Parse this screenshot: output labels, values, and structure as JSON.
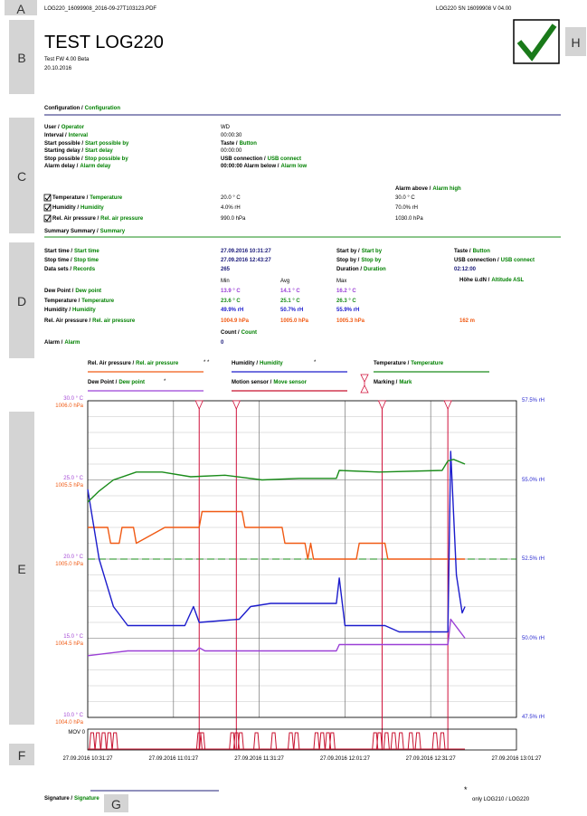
{
  "header": {
    "file": "LOG220_16099908_2016-09-27T103123.PDF",
    "device": "LOG220 SN 16099908 V 04.00"
  },
  "sections": [
    "A",
    "B",
    "C",
    "D",
    "E",
    "F",
    "G",
    "H"
  ],
  "title": "TEST LOG220",
  "firmware": "Test FW 4.00 Beta",
  "date": "20.10.2016",
  "configuration": {
    "heading": [
      "Configuration /",
      "Configuration"
    ],
    "rows": [
      {
        "label": [
          "User /",
          "Operator"
        ],
        "value": "WD"
      },
      {
        "label": [
          "Interval /",
          "Interval"
        ],
        "value": "00:00:30"
      },
      {
        "label": [
          "Start possible /",
          "Start possible by"
        ],
        "value": [
          "Taste /",
          "Button"
        ]
      },
      {
        "label": [
          "Starting delay /",
          "Start delay"
        ],
        "value": "00:00:00"
      },
      {
        "label": [
          "Stop possible /",
          "Stop possible by"
        ],
        "value": [
          "USB connection /",
          "USB connect"
        ]
      },
      {
        "label": [
          "Alarm delay /",
          "Alarm delay"
        ],
        "value": [
          "00:00:00 Alarm below /",
          "Alarm low"
        ]
      }
    ],
    "alarm_above": [
      "Alarm above /",
      "Alarm high"
    ],
    "sensors": [
      {
        "label": [
          "Temperature /",
          "Temperature"
        ],
        "low": "20.0 ° C",
        "high": "30.0 ° C"
      },
      {
        "label": [
          "Humidity /",
          "Humidity"
        ],
        "low": "4.0% rH",
        "high": "70.0% rH"
      },
      {
        "label": [
          "Rel. Air pressure /",
          "Rel. air pressure"
        ],
        "low": "990.0 hPa",
        "high": "1030.0 hPa"
      }
    ]
  },
  "summary": {
    "heading": [
      "Summary Summary /",
      "Summary"
    ],
    "rows": [
      {
        "label": [
          "Start time /",
          "Start time"
        ],
        "value": "27.09.2016 10:31:27",
        "label2": [
          "Start by /",
          "Start by"
        ],
        "value2": [
          "Taste /",
          "Button"
        ]
      },
      {
        "label": [
          "Stop time /",
          "Stop time"
        ],
        "value": "27.09.2016 12:43:27",
        "label2": [
          "Stop by /",
          "Stop by"
        ],
        "value2": [
          "USB connection /",
          "USB connect"
        ]
      },
      {
        "label": [
          "Data sets /",
          "Records"
        ],
        "value": "265",
        "label2": [
          "Duration /",
          "Duration"
        ],
        "value2": "02:12:00"
      }
    ],
    "altitude": {
      "label": [
        "Höhe ü.dN /",
        "Altitude ASL"
      ],
      "value": "162 m"
    },
    "columns": [
      "Min",
      "Avg",
      "Max"
    ],
    "stats": [
      {
        "label": [
          "Dew Point /",
          "Dew point"
        ],
        "values": [
          "13.9 ° C",
          "14.1 ° C",
          "16.2 ° C"
        ],
        "color": "#9b40d6"
      },
      {
        "label": [
          "Temperature /",
          "Temperature"
        ],
        "values": [
          "23.6 ° C",
          "25.1 ° C",
          "26.3 ° C"
        ],
        "color": "#1a8c1a"
      },
      {
        "label": [
          "Humidity /",
          "Humidity"
        ],
        "values": [
          "49.9% rH",
          "50.7% rH",
          "55.9% rH"
        ],
        "color": "#1c1ccc"
      },
      {
        "label": [
          "Rel. Air pressure /",
          "Rel. air pressure"
        ],
        "values": [
          "1004.9 hPa",
          "1005.0 hPa",
          "1005.3 hPa"
        ],
        "color": "#f05a14"
      }
    ],
    "count": [
      "Count /",
      "Count"
    ],
    "alarm": {
      "label": [
        "Alarm /",
        "Alarm"
      ],
      "value": "0"
    }
  },
  "chart_data": {
    "type": "line",
    "xlim": [
      "27.09.2016 10:31:27",
      "27.09.2016 13:01:27"
    ],
    "xticks": [
      "27.09.2016 10:31:27",
      "27.09.2016 11:01:27",
      "27.09.2016 11:31:27",
      "27.09.2016 12:01:27",
      "27.09.2016 12:31:27",
      "27.09.2016 13:01:27"
    ],
    "ylim": [
      10,
      30
    ],
    "yticks": [
      {
        "value": 10,
        "label": "10.0 ° C"
      },
      {
        "value": 15,
        "label": "15.0 ° C"
      },
      {
        "value": 20,
        "label": "20.0 ° C"
      },
      {
        "value": 25,
        "label": "25.0 ° C"
      },
      {
        "value": 30,
        "label": "30.0 ° C"
      }
    ],
    "ycolor": "#a64ad6",
    "y2lim": [
      47.5,
      57.5
    ],
    "y2ticks": [
      {
        "value": 47.5,
        "label": "47.5% rH"
      },
      {
        "value": 50,
        "label": "50.0% rH"
      },
      {
        "value": 52.5,
        "label": "52.5% rH"
      },
      {
        "value": 55,
        "label": "55.0% rH"
      },
      {
        "value": 57.5,
        "label": "57.5% rH"
      }
    ],
    "y2color": "#2a2ad0",
    "y3lim": [
      1004,
      1006
    ],
    "y3ticks": [
      {
        "value": 1004,
        "label": "1004.0 hPa"
      },
      {
        "value": 1004.5,
        "label": "1004.5 hPa"
      },
      {
        "value": 1005,
        "label": "1005.0 hPa"
      },
      {
        "value": 1005.5,
        "label": "1005.5 hPa"
      },
      {
        "value": 1006,
        "label": "1006.0 hPa"
      }
    ],
    "y3color": "#f05a14",
    "grid": true,
    "alarm_low": 20,
    "series": [
      {
        "name": [
          "Rel. Air pressure /",
          "Rel. air pressure"
        ],
        "note": "* *",
        "color": "#f05a14",
        "axis": "y3",
        "x": [
          "10:31:27",
          "10:38:27",
          "10:39:27",
          "10:42:27",
          "10:43:27",
          "10:47:27",
          "10:48:27",
          "10:58:27",
          "11:10:27",
          "11:11:27",
          "11:25:27",
          "11:26:27",
          "11:39:27",
          "11:40:27",
          "11:47:27",
          "11:48:27",
          "11:49:27",
          "11:50:27",
          "12:05:27",
          "12:06:27",
          "12:15:27",
          "12:16:27",
          "12:43:27"
        ],
        "values": [
          1005.2,
          1005.2,
          1005.1,
          1005.1,
          1005.2,
          1005.2,
          1005.1,
          1005.2,
          1005.2,
          1005.3,
          1005.3,
          1005.2,
          1005.2,
          1005.1,
          1005.1,
          1005.0,
          1005.1,
          1005.0,
          1005.0,
          1005.1,
          1005.1,
          1005.0,
          1005.0
        ]
      },
      {
        "name": [
          "Humidity /",
          "Humidity"
        ],
        "note": "*",
        "color": "#1c1ccc",
        "axis": "y2",
        "x": [
          "10:31:27",
          "10:35:27",
          "10:40:27",
          "10:45:27",
          "11:05:27",
          "11:08:27",
          "11:10:27",
          "11:24:27",
          "11:28:27",
          "11:35:27",
          "11:58:27",
          "11:59:27",
          "12:01:27",
          "12:15:27",
          "12:20:27",
          "12:37:27",
          "12:38:27",
          "12:40:27",
          "12:42:27",
          "12:43:27"
        ],
        "values": [
          54.7,
          52.5,
          51.0,
          50.4,
          50.4,
          51.0,
          50.5,
          50.6,
          51.0,
          51.1,
          51.1,
          51.9,
          50.4,
          50.4,
          50.2,
          50.2,
          55.9,
          52.0,
          50.8,
          51.0
        ]
      },
      {
        "name": [
          "Temperature /",
          "Temperature"
        ],
        "color": "#1a8c1a",
        "axis": "y",
        "x": [
          "10:31:27",
          "10:35:27",
          "10:40:27",
          "10:48:27",
          "10:57:27",
          "11:07:27",
          "11:19:27",
          "11:32:27",
          "11:45:27",
          "11:58:27",
          "11:59:27",
          "12:13:27",
          "12:35:27",
          "12:37:27",
          "12:39:27",
          "12:43:27"
        ],
        "values": [
          23.6,
          24.3,
          25.0,
          25.5,
          25.5,
          25.2,
          25.3,
          25.0,
          25.1,
          25.1,
          25.6,
          25.5,
          25.6,
          26.2,
          26.3,
          26.0
        ]
      },
      {
        "name": [
          "Dew Point /",
          "Dew point"
        ],
        "note": "*",
        "color": "#9b40d6",
        "axis": "y",
        "x": [
          "10:31:27",
          "10:45:27",
          "11:09:27",
          "11:10:27",
          "11:12:27",
          "11:58:27",
          "11:59:27",
          "12:37:27",
          "12:38:27",
          "12:43:27"
        ],
        "values": [
          13.9,
          14.2,
          14.2,
          14.4,
          14.2,
          14.2,
          14.6,
          14.6,
          16.2,
          15.0
        ]
      }
    ],
    "motion": {
      "name": [
        "Motion sensor /",
        "Move sensor"
      ],
      "color": "#c8102e",
      "label": "MOV 0",
      "events": [
        "10:33:00",
        "10:35:00",
        "10:37:00",
        "10:39:00",
        "10:41:00",
        "11:10:30",
        "11:11:30",
        "11:22:00",
        "11:23:30",
        "11:25:00",
        "11:30:30",
        "11:36:30",
        "11:42:30",
        "11:44:30",
        "11:51:30",
        "11:53:30",
        "11:55:30",
        "11:57:00",
        "12:12:00",
        "12:13:30",
        "12:16:00",
        "12:18:30",
        "12:21:00",
        "12:24:30",
        "12:27:00",
        "12:33:00",
        "12:35:30"
      ]
    },
    "marking": {
      "name": [
        "Marking /",
        "Mark"
      ],
      "color": "#d0103a",
      "x": [
        "11:10:27",
        "11:23:27",
        "12:14:27",
        "12:37:27"
      ]
    }
  },
  "signature": [
    "Signature /",
    "Signature"
  ],
  "footnote": {
    "mark": "*",
    "text": "only LOG210 / LOG220"
  }
}
